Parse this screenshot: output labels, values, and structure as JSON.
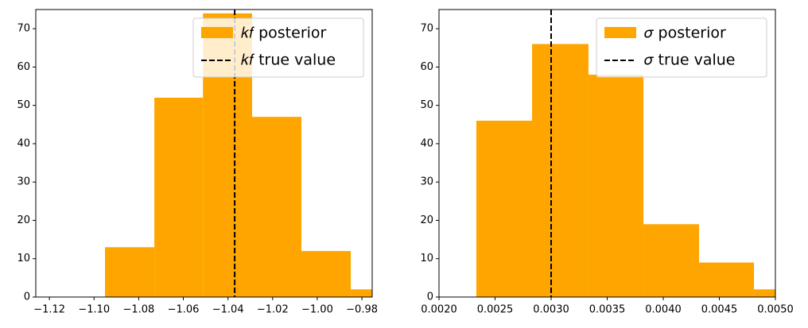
{
  "chart_data": [
    {
      "type": "histogram",
      "bins": [
        -1.0951,
        -1.073,
        -1.0512,
        -1.0292,
        -1.0071,
        -0.985,
        -0.963
      ],
      "values": [
        13,
        52,
        74,
        47,
        12,
        2
      ],
      "color": "#ffa500",
      "name": "𝑘𝑓 posterior",
      "true_value": -1.037,
      "true_value_label": "𝑘𝑓 true value",
      "xlim": [
        -1.1261,
        -0.9754
      ],
      "xticks": [
        {
          "value": -1.12,
          "label": "−1.12"
        },
        {
          "value": -1.1,
          "label": "−1.10"
        },
        {
          "value": -1.08,
          "label": "−1.08"
        },
        {
          "value": -1.06,
          "label": "−1.06"
        },
        {
          "value": -1.04,
          "label": "−1.04"
        },
        {
          "value": -1.02,
          "label": "−1.02"
        },
        {
          "value": -1.0,
          "label": "−1.00"
        },
        {
          "value": -0.98,
          "label": "−0.98"
        }
      ],
      "ylim": [
        0,
        75
      ],
      "yticks": [
        0,
        10,
        20,
        30,
        40,
        50,
        60,
        70
      ],
      "legend": "upper right"
    },
    {
      "type": "histogram",
      "bins": [
        0.002333,
        0.00283,
        0.003333,
        0.003823,
        0.004319,
        0.004809,
        0.0053
      ],
      "values": [
        46,
        66,
        58,
        19,
        9,
        2
      ],
      "color": "#ffa500",
      "name": "𝜎 posterior",
      "true_value": 0.003,
      "true_value_label": "𝜎 true value",
      "xlim": [
        0.002,
        0.005
      ],
      "xticks": [
        {
          "value": 0.002,
          "label": "0.0020"
        },
        {
          "value": 0.0025,
          "label": "0.0025"
        },
        {
          "value": 0.003,
          "label": "0.0030"
        },
        {
          "value": 0.0035,
          "label": "0.0035"
        },
        {
          "value": 0.004,
          "label": "0.0040"
        },
        {
          "value": 0.0045,
          "label": "0.0045"
        },
        {
          "value": 0.005,
          "label": "0.0050"
        }
      ],
      "ylim": [
        0,
        75
      ],
      "yticks": [
        0,
        10,
        20,
        30,
        40,
        50,
        60,
        70
      ],
      "legend": "upper right"
    }
  ]
}
